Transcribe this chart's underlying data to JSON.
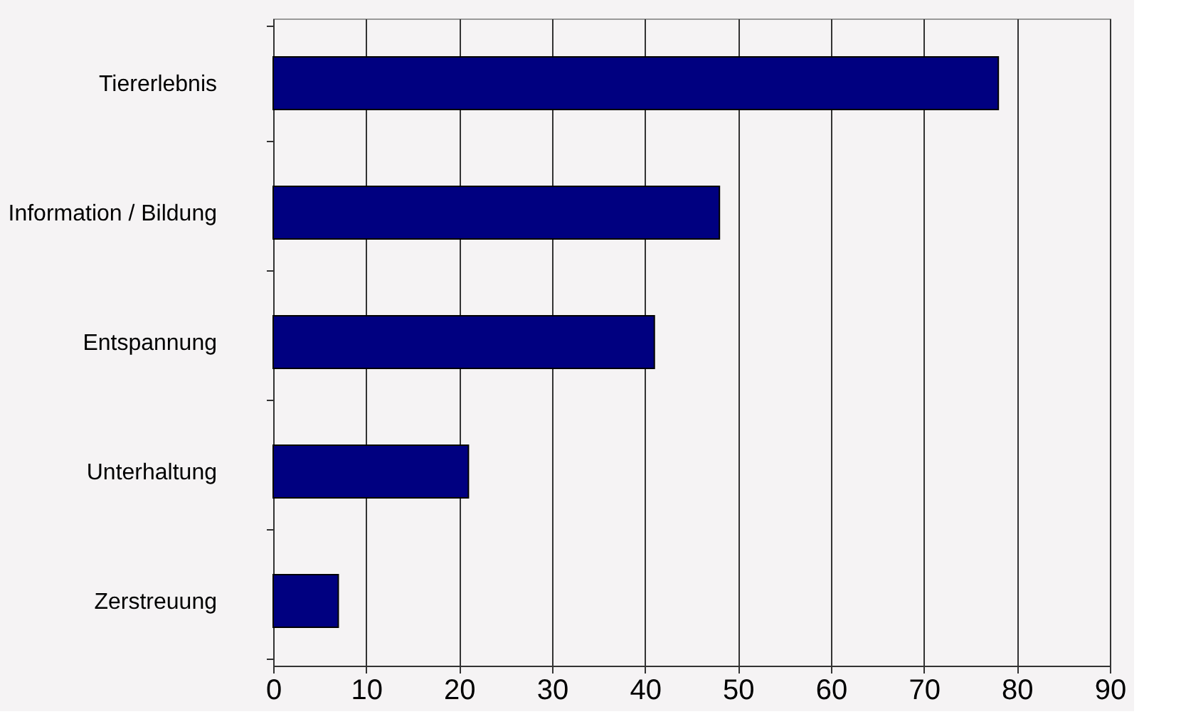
{
  "chart_data": {
    "type": "bar",
    "orientation": "horizontal",
    "categories": [
      "Tiererlebnis",
      "Information / Bildung",
      "Entspannung",
      "Unterhaltung",
      "Zerstreuung"
    ],
    "values": [
      78,
      48,
      41,
      21,
      7
    ],
    "color": "#000080",
    "xlim": [
      0,
      90
    ],
    "xticks": [
      0,
      10,
      20,
      30,
      40,
      50,
      60,
      70,
      80,
      90
    ],
    "grid": "x"
  }
}
